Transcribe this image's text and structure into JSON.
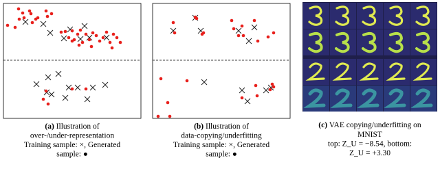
{
  "panels": [
    {
      "label": "(a)",
      "lines": [
        "Illustration of",
        "over-/under-representation",
        "Training sample: ×, Generated",
        "sample: ●"
      ]
    },
    {
      "label": "(b)",
      "lines": [
        "Illustration of",
        "data-copying/underfitting",
        "Training sample: ×, Generated",
        "sample: ●"
      ]
    },
    {
      "label": "(c)",
      "lines": [
        "VAE copying/underfitting on",
        "MNIST",
        "top: Z_U = −8.54, bottom:",
        "Z_U = +3.30"
      ]
    }
  ]
}
